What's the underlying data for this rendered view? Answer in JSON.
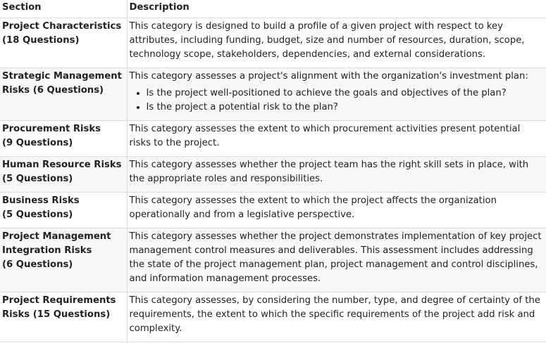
{
  "header": {
    "section": "Section",
    "description": "Description"
  },
  "rows": [
    {
      "section_line1": "Project Characteristics",
      "section_line2": "(18 Questions)",
      "description": "This category is designed to build a profile of a given project with respect to key attributes, including funding, budget, size and number of resources, duration, scope, technology scope, stakeholders, dependencies, and external considerations."
    },
    {
      "section_line1": "Strategic Management",
      "section_line2": "Risks (6 Questions)",
      "description": "This category assesses a project's alignment with the organization's investment plan:",
      "bullets": [
        "Is the project well-positioned to achieve the goals and objectives of the plan?",
        "Is the project a potential risk to the plan?"
      ]
    },
    {
      "section_line1": "Procurement Risks",
      "section_line2": "(9 Questions)",
      "description": "This category assesses the extent to which procurement activities present potential risks to the project."
    },
    {
      "section_line1": "Human Resource Risks",
      "section_line2": "(5 Questions)",
      "description": "This category assesses whether the project team has the right skill sets in place, with the appropriate roles and responsibilities."
    },
    {
      "section_line1": "Business Risks",
      "section_line2": "(5 Questions)",
      "description": "This category assesses the extent to which the project affects the organization operationally and from a legislative perspective."
    },
    {
      "section_line1": "Project Management",
      "section_line2": "Integration Risks",
      "section_line3": "(6 Questions)",
      "description": "This category assesses whether the project demonstrates implementation of key project management control measures and deliverables. This assessment includes addressing the state of the project management plan, project management and control disciplines, and information management processes."
    },
    {
      "section_line1": "Project Requirements",
      "section_line2": "Risks (15 Questions)",
      "description": "This category assesses, by considering the number, type, and degree of certainty of the requirements, the extent to which the specific requirements of the project add risk and complexity."
    }
  ]
}
